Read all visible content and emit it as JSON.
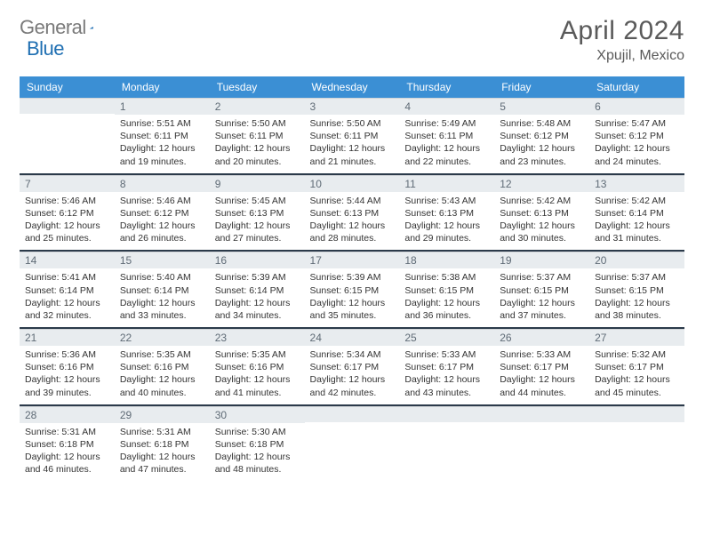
{
  "brand": {
    "part1": "General",
    "part2": "Blue"
  },
  "title": "April 2024",
  "location": "Xpujil, Mexico",
  "colors": {
    "header_bg": "#3b8fd4",
    "header_text": "#ffffff",
    "daynum_bg": "#e8ecef",
    "daynum_text": "#5f6b76",
    "body_text": "#333333",
    "logo_gray": "#7a7a7a",
    "logo_blue": "#1f6fb2",
    "week_separator": "#2b3a4a"
  },
  "weekdays": [
    "Sunday",
    "Monday",
    "Tuesday",
    "Wednesday",
    "Thursday",
    "Friday",
    "Saturday"
  ],
  "weeks": [
    [
      null,
      {
        "n": "1",
        "sr": "Sunrise: 5:51 AM",
        "ss": "Sunset: 6:11 PM",
        "d1": "Daylight: 12 hours",
        "d2": "and 19 minutes."
      },
      {
        "n": "2",
        "sr": "Sunrise: 5:50 AM",
        "ss": "Sunset: 6:11 PM",
        "d1": "Daylight: 12 hours",
        "d2": "and 20 minutes."
      },
      {
        "n": "3",
        "sr": "Sunrise: 5:50 AM",
        "ss": "Sunset: 6:11 PM",
        "d1": "Daylight: 12 hours",
        "d2": "and 21 minutes."
      },
      {
        "n": "4",
        "sr": "Sunrise: 5:49 AM",
        "ss": "Sunset: 6:11 PM",
        "d1": "Daylight: 12 hours",
        "d2": "and 22 minutes."
      },
      {
        "n": "5",
        "sr": "Sunrise: 5:48 AM",
        "ss": "Sunset: 6:12 PM",
        "d1": "Daylight: 12 hours",
        "d2": "and 23 minutes."
      },
      {
        "n": "6",
        "sr": "Sunrise: 5:47 AM",
        "ss": "Sunset: 6:12 PM",
        "d1": "Daylight: 12 hours",
        "d2": "and 24 minutes."
      }
    ],
    [
      {
        "n": "7",
        "sr": "Sunrise: 5:46 AM",
        "ss": "Sunset: 6:12 PM",
        "d1": "Daylight: 12 hours",
        "d2": "and 25 minutes."
      },
      {
        "n": "8",
        "sr": "Sunrise: 5:46 AM",
        "ss": "Sunset: 6:12 PM",
        "d1": "Daylight: 12 hours",
        "d2": "and 26 minutes."
      },
      {
        "n": "9",
        "sr": "Sunrise: 5:45 AM",
        "ss": "Sunset: 6:13 PM",
        "d1": "Daylight: 12 hours",
        "d2": "and 27 minutes."
      },
      {
        "n": "10",
        "sr": "Sunrise: 5:44 AM",
        "ss": "Sunset: 6:13 PM",
        "d1": "Daylight: 12 hours",
        "d2": "and 28 minutes."
      },
      {
        "n": "11",
        "sr": "Sunrise: 5:43 AM",
        "ss": "Sunset: 6:13 PM",
        "d1": "Daylight: 12 hours",
        "d2": "and 29 minutes."
      },
      {
        "n": "12",
        "sr": "Sunrise: 5:42 AM",
        "ss": "Sunset: 6:13 PM",
        "d1": "Daylight: 12 hours",
        "d2": "and 30 minutes."
      },
      {
        "n": "13",
        "sr": "Sunrise: 5:42 AM",
        "ss": "Sunset: 6:14 PM",
        "d1": "Daylight: 12 hours",
        "d2": "and 31 minutes."
      }
    ],
    [
      {
        "n": "14",
        "sr": "Sunrise: 5:41 AM",
        "ss": "Sunset: 6:14 PM",
        "d1": "Daylight: 12 hours",
        "d2": "and 32 minutes."
      },
      {
        "n": "15",
        "sr": "Sunrise: 5:40 AM",
        "ss": "Sunset: 6:14 PM",
        "d1": "Daylight: 12 hours",
        "d2": "and 33 minutes."
      },
      {
        "n": "16",
        "sr": "Sunrise: 5:39 AM",
        "ss": "Sunset: 6:14 PM",
        "d1": "Daylight: 12 hours",
        "d2": "and 34 minutes."
      },
      {
        "n": "17",
        "sr": "Sunrise: 5:39 AM",
        "ss": "Sunset: 6:15 PM",
        "d1": "Daylight: 12 hours",
        "d2": "and 35 minutes."
      },
      {
        "n": "18",
        "sr": "Sunrise: 5:38 AM",
        "ss": "Sunset: 6:15 PM",
        "d1": "Daylight: 12 hours",
        "d2": "and 36 minutes."
      },
      {
        "n": "19",
        "sr": "Sunrise: 5:37 AM",
        "ss": "Sunset: 6:15 PM",
        "d1": "Daylight: 12 hours",
        "d2": "and 37 minutes."
      },
      {
        "n": "20",
        "sr": "Sunrise: 5:37 AM",
        "ss": "Sunset: 6:15 PM",
        "d1": "Daylight: 12 hours",
        "d2": "and 38 minutes."
      }
    ],
    [
      {
        "n": "21",
        "sr": "Sunrise: 5:36 AM",
        "ss": "Sunset: 6:16 PM",
        "d1": "Daylight: 12 hours",
        "d2": "and 39 minutes."
      },
      {
        "n": "22",
        "sr": "Sunrise: 5:35 AM",
        "ss": "Sunset: 6:16 PM",
        "d1": "Daylight: 12 hours",
        "d2": "and 40 minutes."
      },
      {
        "n": "23",
        "sr": "Sunrise: 5:35 AM",
        "ss": "Sunset: 6:16 PM",
        "d1": "Daylight: 12 hours",
        "d2": "and 41 minutes."
      },
      {
        "n": "24",
        "sr": "Sunrise: 5:34 AM",
        "ss": "Sunset: 6:17 PM",
        "d1": "Daylight: 12 hours",
        "d2": "and 42 minutes."
      },
      {
        "n": "25",
        "sr": "Sunrise: 5:33 AM",
        "ss": "Sunset: 6:17 PM",
        "d1": "Daylight: 12 hours",
        "d2": "and 43 minutes."
      },
      {
        "n": "26",
        "sr": "Sunrise: 5:33 AM",
        "ss": "Sunset: 6:17 PM",
        "d1": "Daylight: 12 hours",
        "d2": "and 44 minutes."
      },
      {
        "n": "27",
        "sr": "Sunrise: 5:32 AM",
        "ss": "Sunset: 6:17 PM",
        "d1": "Daylight: 12 hours",
        "d2": "and 45 minutes."
      }
    ],
    [
      {
        "n": "28",
        "sr": "Sunrise: 5:31 AM",
        "ss": "Sunset: 6:18 PM",
        "d1": "Daylight: 12 hours",
        "d2": "and 46 minutes."
      },
      {
        "n": "29",
        "sr": "Sunrise: 5:31 AM",
        "ss": "Sunset: 6:18 PM",
        "d1": "Daylight: 12 hours",
        "d2": "and 47 minutes."
      },
      {
        "n": "30",
        "sr": "Sunrise: 5:30 AM",
        "ss": "Sunset: 6:18 PM",
        "d1": "Daylight: 12 hours",
        "d2": "and 48 minutes."
      },
      null,
      null,
      null,
      null
    ]
  ]
}
